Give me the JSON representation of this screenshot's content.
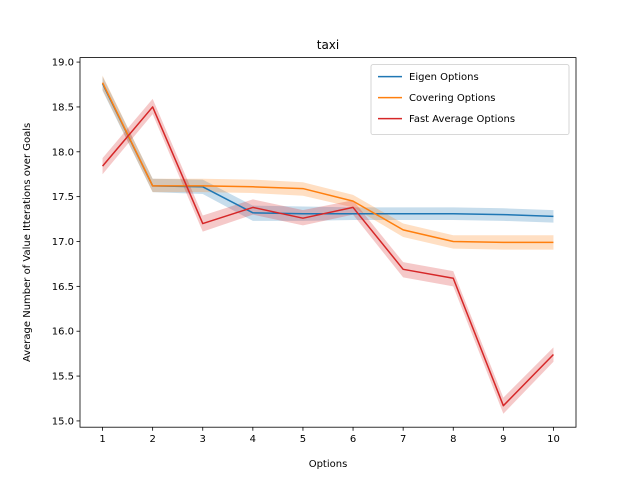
{
  "chart_data": {
    "type": "line",
    "title": "taxi",
    "xlabel": "Options",
    "ylabel": "Average Number of Value Itterations over Goals",
    "x": [
      1,
      2,
      3,
      4,
      5,
      6,
      7,
      8,
      9,
      10
    ],
    "xticks": [
      "1",
      "2",
      "3",
      "4",
      "5",
      "6",
      "7",
      "8",
      "9",
      "10"
    ],
    "yticks": [
      "15.0",
      "15.5",
      "16.0",
      "16.5",
      "17.0",
      "17.5",
      "18.0",
      "18.5",
      "19.0"
    ],
    "xlim": [
      0.55,
      10.45
    ],
    "ylim": [
      14.93,
      19.05
    ],
    "grid": false,
    "legend_position": "top-right",
    "series": [
      {
        "name": "Eigen Options",
        "color": "#1f77b4",
        "values": [
          18.76,
          17.62,
          17.61,
          17.32,
          17.31,
          17.31,
          17.31,
          17.31,
          17.3,
          17.28
        ],
        "lower": [
          18.68,
          17.55,
          17.53,
          17.23,
          17.23,
          17.24,
          17.24,
          17.24,
          17.23,
          17.21
        ],
        "upper": [
          18.84,
          17.7,
          17.69,
          17.4,
          17.39,
          17.38,
          17.38,
          17.38,
          17.37,
          17.35
        ]
      },
      {
        "name": "Covering Options",
        "color": "#ff7f0e",
        "values": [
          18.77,
          17.62,
          17.62,
          17.61,
          17.59,
          17.45,
          17.13,
          17.0,
          16.99,
          16.99
        ],
        "lower": [
          18.69,
          17.55,
          17.55,
          17.54,
          17.51,
          17.38,
          17.05,
          16.92,
          16.91,
          16.91
        ],
        "upper": [
          18.85,
          17.7,
          17.7,
          17.69,
          17.66,
          17.52,
          17.2,
          17.07,
          17.07,
          17.07
        ]
      },
      {
        "name": "Fast Average Options",
        "color": "#d62728",
        "values": [
          17.84,
          18.5,
          17.2,
          17.38,
          17.26,
          17.38,
          16.69,
          16.59,
          15.17,
          15.74
        ],
        "lower": [
          17.75,
          18.42,
          17.11,
          17.3,
          17.18,
          17.3,
          16.6,
          16.5,
          15.08,
          15.66
        ],
        "upper": [
          17.93,
          18.59,
          17.29,
          17.47,
          17.35,
          17.46,
          16.77,
          16.67,
          15.26,
          15.82
        ]
      }
    ]
  }
}
